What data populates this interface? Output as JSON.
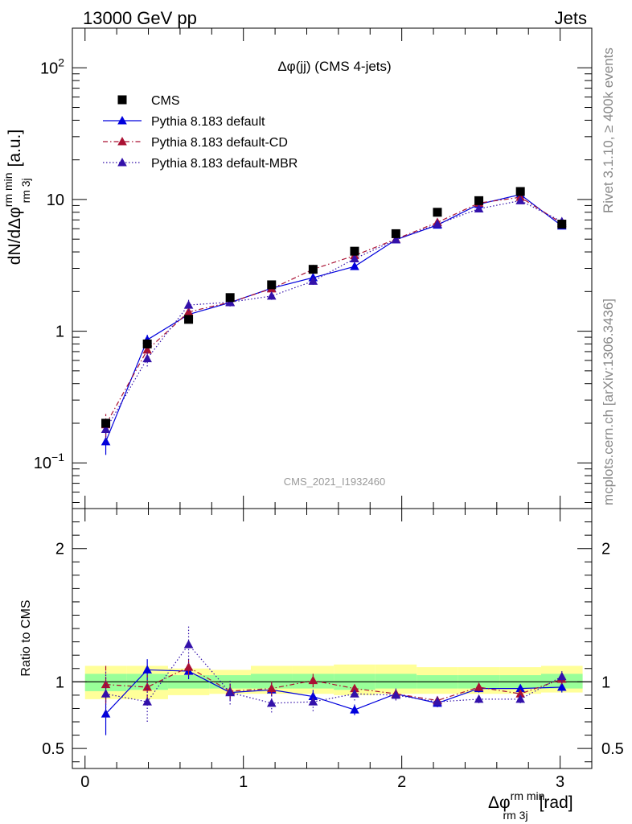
{
  "header": {
    "energy_label": "13000 GeV pp",
    "process_label": "Jets"
  },
  "side_labels": {
    "rivet": "Rivet 3.1.10, ≥ 400k events",
    "source": "mcplots.cern.ch [arXiv:1306.3436]"
  },
  "chart_data": [
    {
      "type": "scatter",
      "panel": "main",
      "title": "Δφ(jj) (CMS 4-jets)",
      "watermark": "CMS_2021_I1932460",
      "ylabel": "dN/dΔφ^{rm min}_{rm 3j} [a.u.]",
      "ylabel_parts": {
        "main": "dN/dΔφ",
        "sup": "rm min",
        "sub": "rm 3j",
        "unit": "[a.u.]"
      },
      "yscale": "log",
      "xlim": [
        -0.08,
        3.2
      ],
      "ylim": [
        0.045,
        200
      ],
      "yticks": [
        {
          "value": 100,
          "base": "10",
          "exp": "2"
        },
        {
          "value": 10,
          "base": "10",
          "exp": ""
        },
        {
          "value": 1,
          "base": "1",
          "exp": ""
        },
        {
          "value": 0.1,
          "base": "10",
          "exp": "−1"
        }
      ],
      "legend_position": "top-left",
      "x": [
        0.131,
        0.393,
        0.654,
        0.916,
        1.178,
        1.44,
        1.702,
        1.963,
        2.225,
        2.487,
        2.749,
        3.011
      ],
      "series": [
        {
          "name": "CMS",
          "style": "data",
          "color": "#000000",
          "values": [
            0.2,
            0.8,
            1.23,
            1.8,
            2.25,
            2.95,
            4.05,
            5.5,
            8.0,
            9.8,
            11.5,
            6.5
          ],
          "errors": [
            0.012,
            0.04,
            0.05,
            0.06,
            0.07,
            0.09,
            0.12,
            0.17,
            0.25,
            0.3,
            0.35,
            0.2
          ]
        },
        {
          "name": "Pythia 8.183 default",
          "style": "solid",
          "color": "#0000dd",
          "values": [
            0.145,
            0.86,
            1.34,
            1.65,
            2.12,
            2.55,
            3.1,
            4.95,
            6.4,
            9.2,
            10.9,
            6.3
          ],
          "errors": [
            0.03,
            0.08,
            0.07,
            0.07,
            0.08,
            0.1,
            0.12,
            0.15,
            0.2,
            0.3,
            0.35,
            0.25
          ]
        },
        {
          "name": "Pythia 8.183 default-CD",
          "style": "dashdot",
          "color": "#aa1133",
          "values": [
            0.195,
            0.72,
            1.4,
            1.66,
            2.1,
            2.95,
            3.75,
            5.0,
            6.7,
            9.4,
            10.4,
            6.6
          ],
          "errors": [
            0.04,
            0.08,
            0.07,
            0.07,
            0.08,
            0.1,
            0.12,
            0.15,
            0.2,
            0.3,
            0.35,
            0.25
          ]
        },
        {
          "name": "Pythia 8.183 default-MBR",
          "style": "dotted",
          "color": "#3311aa",
          "values": [
            0.18,
            0.62,
            1.58,
            1.66,
            1.85,
            2.4,
            3.55,
            4.95,
            6.5,
            8.5,
            9.8,
            6.8
          ],
          "errors": [
            0.04,
            0.08,
            0.15,
            0.12,
            0.12,
            0.15,
            0.15,
            0.15,
            0.2,
            0.3,
            0.35,
            0.25
          ]
        }
      ]
    },
    {
      "type": "line",
      "panel": "ratio",
      "ylabel": "Ratio to CMS",
      "xlabel": "Δφ^{rm min}_{rm 3j} [rad]",
      "xlabel_parts": {
        "main": "Δφ",
        "sup": "rm min",
        "sub": "rm 3j",
        "unit": "[rad]"
      },
      "xlim": [
        -0.08,
        3.2
      ],
      "ylim": [
        0.35,
        2.3
      ],
      "xticks": [
        0,
        1,
        2,
        3
      ],
      "xtick_labels": [
        "0",
        "1",
        "2",
        "3"
      ],
      "yticks": [
        0.5,
        1,
        2
      ],
      "ytick_labels": [
        "0.5",
        "1",
        "2"
      ],
      "bin_edges": [
        0.0,
        0.262,
        0.524,
        0.785,
        1.047,
        1.309,
        1.571,
        1.833,
        2.094,
        2.356,
        2.618,
        2.88,
        3.142
      ],
      "band_inner": [
        [
          0.93,
          1.06
        ],
        [
          0.94,
          1.06
        ],
        [
          0.95,
          1.05
        ],
        [
          0.95,
          1.05
        ],
        [
          0.95,
          1.06
        ],
        [
          0.95,
          1.06
        ],
        [
          0.94,
          1.06
        ],
        [
          0.95,
          1.06
        ],
        [
          0.95,
          1.05
        ],
        [
          0.95,
          1.05
        ],
        [
          0.95,
          1.05
        ],
        [
          0.95,
          1.06
        ]
      ],
      "band_outer": [
        [
          0.87,
          1.12
        ],
        [
          0.87,
          1.12
        ],
        [
          0.9,
          1.1
        ],
        [
          0.91,
          1.09
        ],
        [
          0.91,
          1.12
        ],
        [
          0.91,
          1.12
        ],
        [
          0.9,
          1.13
        ],
        [
          0.91,
          1.13
        ],
        [
          0.91,
          1.11
        ],
        [
          0.91,
          1.11
        ],
        [
          0.91,
          1.11
        ],
        [
          0.92,
          1.12
        ]
      ],
      "series": [
        {
          "name": "Pythia 8.183 default",
          "style": "solid",
          "color": "#0000dd",
          "values": [
            0.76,
            1.09,
            1.08,
            0.92,
            0.94,
            0.89,
            0.79,
            0.91,
            0.84,
            0.95,
            0.95,
            0.96
          ],
          "errors": [
            0.16,
            0.08,
            0.06,
            0.06,
            0.05,
            0.05,
            0.04,
            0.04,
            0.03,
            0.03,
            0.03,
            0.04
          ]
        },
        {
          "name": "Pythia 8.183 default-CD",
          "style": "dashdot",
          "color": "#aa1133",
          "values": [
            0.98,
            0.96,
            1.11,
            0.93,
            0.95,
            1.01,
            0.95,
            0.91,
            0.86,
            0.96,
            0.91,
            1.02
          ],
          "errors": [
            0.14,
            0.09,
            0.06,
            0.06,
            0.05,
            0.05,
            0.04,
            0.04,
            0.03,
            0.03,
            0.03,
            0.04
          ]
        },
        {
          "name": "Pythia 8.183 default-MBR",
          "style": "dotted",
          "color": "#3311aa",
          "values": [
            0.91,
            0.85,
            1.28,
            0.92,
            0.84,
            0.85,
            0.91,
            0.9,
            0.85,
            0.87,
            0.87,
            1.04
          ],
          "errors": [
            0.18,
            0.15,
            0.14,
            0.09,
            0.07,
            0.07,
            0.05,
            0.04,
            0.04,
            0.03,
            0.03,
            0.04
          ]
        }
      ]
    }
  ]
}
